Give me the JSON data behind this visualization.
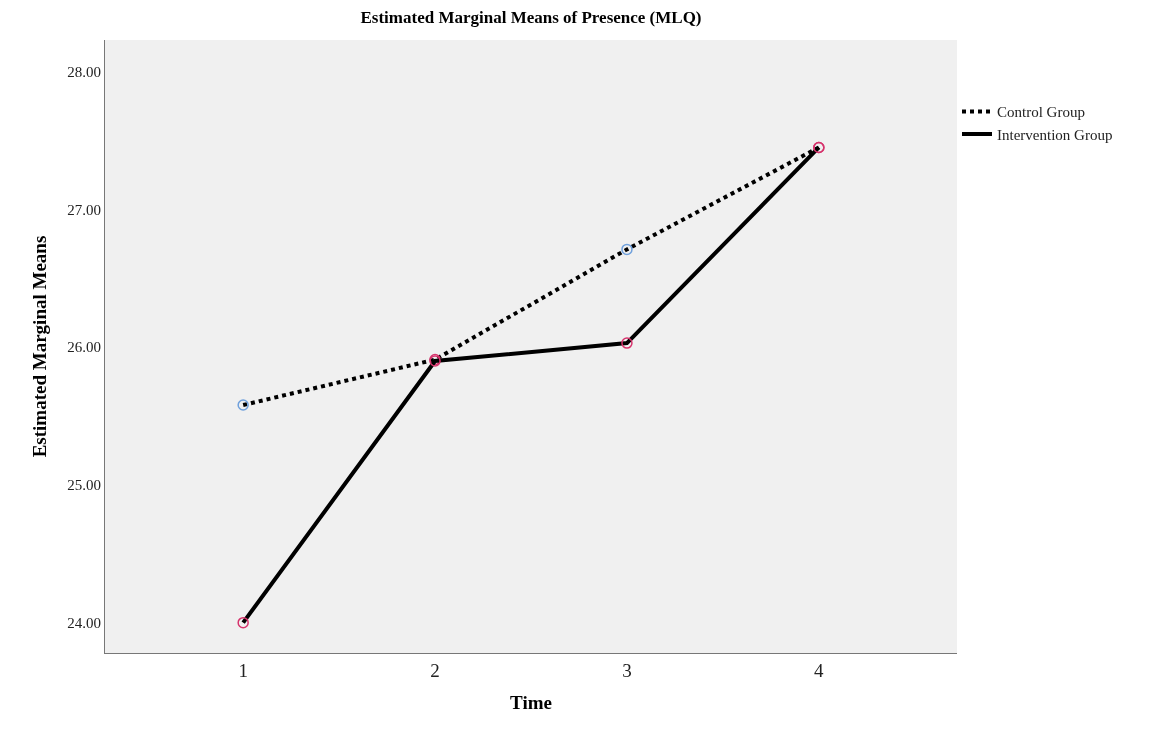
{
  "chart_data": {
    "type": "line",
    "title": "Estimated Marginal Means of Presence (MLQ)",
    "xlabel": "Time",
    "ylabel": "Estimated Marginal Means",
    "x": [
      1,
      2,
      3,
      4
    ],
    "xlim": [
      0.28,
      4.72
    ],
    "xticks": [
      1,
      2,
      3,
      4
    ],
    "ylim": [
      23.78,
      28.23
    ],
    "yticks": [
      {
        "value": 24,
        "label": "24.00"
      },
      {
        "value": 25,
        "label": "25.00"
      },
      {
        "value": 26,
        "label": "26.00"
      },
      {
        "value": 27,
        "label": "27.00"
      },
      {
        "value": 28,
        "label": "28.00"
      }
    ],
    "series": [
      {
        "name": "Control Group",
        "color": "#000000",
        "colors": [
          "#6fa0dc",
          "#d6336c",
          "#6fa0dc",
          "#d6336c"
        ],
        "line_style": "dotted",
        "values": [
          25.58,
          25.91,
          26.71,
          27.45
        ]
      },
      {
        "name": "Intervention Group",
        "color": "#000000",
        "colors": [
          "#d6336c",
          "#d6336c",
          "#d6336c",
          "#d6336c"
        ],
        "line_style": "solid",
        "values": [
          24.0,
          25.9,
          26.03,
          27.45
        ]
      }
    ],
    "marker": "circle",
    "grid": false,
    "legend": "top right"
  }
}
